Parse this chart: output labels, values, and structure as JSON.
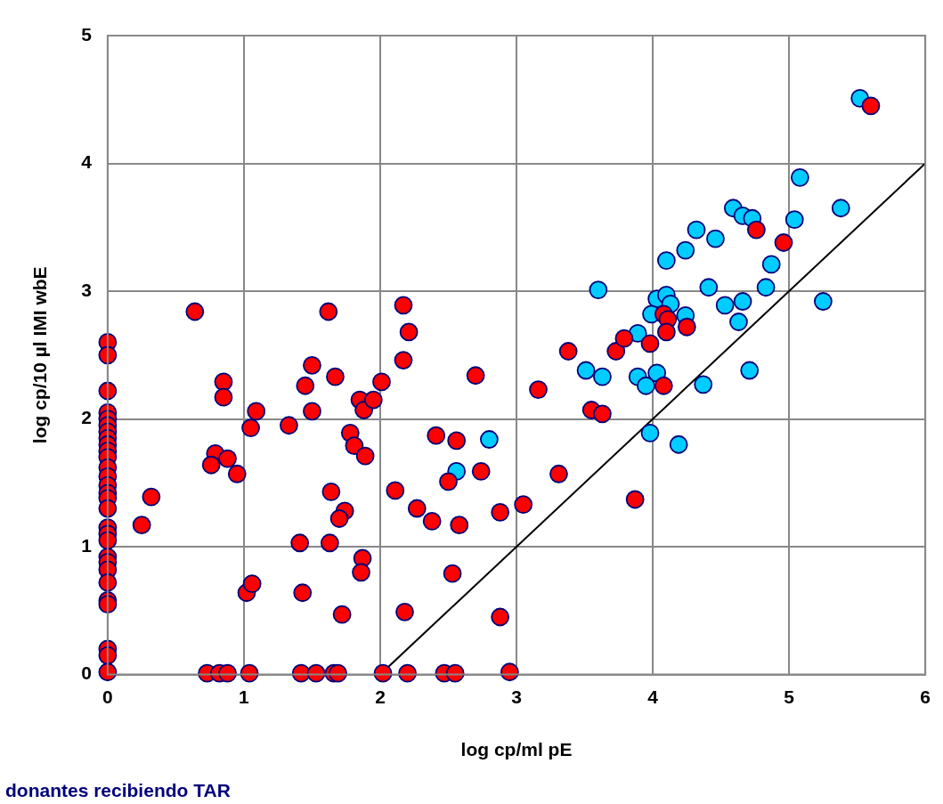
{
  "chart_data": {
    "type": "scatter",
    "xlabel": "log cp/ml pE",
    "ylabel": "log cp/10 µl IMI wbE",
    "xlim": [
      0,
      6
    ],
    "xticks": [
      0,
      1,
      2,
      3,
      4,
      5,
      6
    ],
    "ylim": [
      0,
      5
    ],
    "yticks": [
      0,
      1,
      2,
      3,
      4,
      5
    ],
    "grid": true,
    "legend": false,
    "marker": "circle",
    "annotations": [
      "donantes recibiendo TAR"
    ],
    "series": [
      {
        "color": "#ff0000",
        "x": [
          0,
          0,
          0,
          0,
          0,
          0,
          0,
          0,
          0,
          0,
          0,
          0,
          0,
          0,
          0,
          0,
          0,
          0,
          0,
          0,
          0,
          0,
          0,
          0,
          0,
          0,
          0,
          0,
          0,
          0.64,
          0.32,
          0.25,
          0.85,
          0.85,
          0.79,
          0.76,
          0.88,
          0.95,
          1.09,
          1.05,
          1.02,
          1.06,
          0.73,
          0.82,
          0.88,
          1.04,
          1.33,
          1.62,
          1.5,
          1.45,
          1.67,
          1.5,
          2.01,
          1.85,
          1.88,
          1.95,
          1.78,
          1.81,
          1.89,
          1.64,
          1.74,
          1.7,
          1.41,
          1.63,
          1.87,
          1.86,
          1.43,
          1.72,
          1.42,
          1.53,
          1.66,
          1.69,
          2.02,
          2.2,
          2.17,
          2.21,
          2.17,
          2.11,
          2.27,
          2.18,
          2.7,
          3.16,
          3.38,
          2.41,
          2.56,
          2.74,
          2.5,
          2.38,
          2.58,
          2.88,
          3.05,
          3.31,
          2.53,
          2.88,
          2.47,
          2.55,
          2.95,
          3.87,
          3.55,
          3.63,
          3.73,
          3.79,
          3.98,
          4.08,
          5.6,
          4.76,
          4.96,
          4.08,
          4.11,
          4.1,
          4.25
        ],
        "values": [
          2.6,
          2.5,
          2.22,
          2.05,
          2.0,
          1.95,
          1.9,
          1.85,
          1.8,
          1.75,
          1.7,
          1.62,
          1.55,
          1.48,
          1.42,
          1.38,
          1.3,
          1.15,
          1.1,
          1.05,
          0.92,
          0.88,
          0.82,
          0.72,
          0.58,
          0.55,
          0.2,
          0.15,
          0.02,
          2.84,
          1.39,
          1.17,
          2.29,
          2.17,
          1.73,
          1.64,
          1.69,
          1.57,
          2.06,
          1.93,
          0.64,
          0.71,
          0.01,
          0.01,
          0.01,
          0.01,
          1.95,
          2.84,
          2.42,
          2.26,
          2.33,
          2.06,
          2.29,
          2.15,
          2.07,
          2.15,
          1.89,
          1.79,
          1.71,
          1.43,
          1.28,
          1.22,
          1.03,
          1.03,
          0.91,
          0.8,
          0.64,
          0.47,
          0.01,
          0.01,
          0.01,
          0.01,
          0.01,
          0.01,
          2.89,
          2.68,
          2.46,
          1.44,
          1.3,
          0.49,
          2.34,
          2.23,
          2.53,
          1.87,
          1.83,
          1.59,
          1.51,
          1.2,
          1.17,
          1.27,
          1.33,
          1.57,
          0.79,
          0.45,
          0.01,
          0.01,
          0.02,
          1.37,
          2.07,
          2.04,
          2.53,
          2.63,
          2.59,
          2.26,
          4.45,
          3.48,
          3.38,
          2.82,
          2.78,
          2.68,
          2.72
        ]
      },
      {
        "color": "#00ccff",
        "x": [
          2.8,
          2.56,
          3.6,
          3.51,
          3.63,
          3.89,
          3.89,
          4.03,
          3.98,
          5.52,
          5.08,
          5.38,
          5.04,
          4.59,
          4.66,
          4.73,
          4.32,
          4.46,
          4.24,
          4.1,
          4.87,
          4.83,
          4.41,
          4.03,
          4.1,
          4.13,
          3.99,
          4.24,
          4.53,
          4.66,
          4.63,
          5.25,
          3.95,
          4.37,
          4.71,
          4.19
        ],
        "values": [
          1.84,
          1.59,
          3.01,
          2.38,
          2.33,
          2.67,
          2.33,
          2.36,
          1.89,
          4.51,
          3.89,
          3.65,
          3.56,
          3.65,
          3.59,
          3.57,
          3.48,
          3.41,
          3.32,
          3.24,
          3.21,
          3.03,
          3.03,
          2.94,
          2.97,
          2.9,
          2.82,
          2.81,
          2.89,
          2.92,
          2.76,
          2.92,
          2.26,
          2.27,
          2.38,
          1.8
        ]
      },
      {
        "type": "line",
        "color": "#000000",
        "marker": "none",
        "x": [
          2,
          6
        ],
        "values": [
          0,
          4
        ]
      }
    ]
  }
}
